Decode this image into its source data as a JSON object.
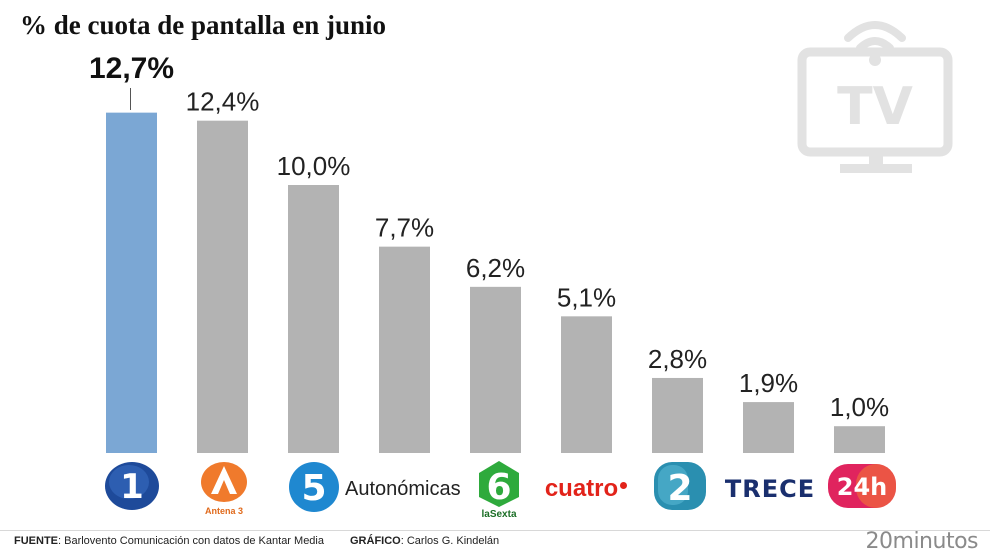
{
  "title": "% de cuota de pantalla en junio",
  "chart_data": {
    "type": "bar",
    "title": "% de cuota de pantalla en junio",
    "categories": [
      "La 1",
      "Antena 3",
      "Telecinco",
      "Autonómicas",
      "laSexta",
      "Cuatro",
      "La 2",
      "Trece",
      "24h"
    ],
    "values": [
      12.7,
      12.4,
      10.0,
      7.7,
      6.2,
      5.1,
      2.8,
      1.9,
      1.0
    ],
    "value_labels": [
      "12,7%",
      "12,4%",
      "10,0%",
      "7,7%",
      "6,2%",
      "5,1%",
      "2,8%",
      "1,9%",
      "1,0%"
    ],
    "ylim": [
      0,
      14
    ],
    "highlight_index": 0,
    "colors": {
      "highlight": "#7ba7d4",
      "default": "#b3b3b3"
    },
    "grid": false
  },
  "logos": {
    "la1": {
      "text": "1",
      "icon": "la1-logo"
    },
    "antena3": {
      "text": "Antena 3",
      "icon": "antena3-logo"
    },
    "telecinco": {
      "text": "5",
      "icon": "telecinco-logo"
    },
    "autonomicas": {
      "text": "Autonómicas"
    },
    "lasexta": {
      "text": "6",
      "caption": "laSexta",
      "icon": "lasexta-logo"
    },
    "cuatro": {
      "text": "cuatro",
      "icon": "cuatro-logo"
    },
    "la2": {
      "text": "2",
      "icon": "la2-logo"
    },
    "trece": {
      "text": "TRECE",
      "icon": "trece-logo"
    },
    "canal24h": {
      "text": "24h",
      "icon": "24h-logo"
    }
  },
  "footer": {
    "source_label": "FUENTE",
    "source_text": ": Barlovento Comunicación con datos de Kantar Media",
    "graphic_label": "GRÁFICO",
    "graphic_text": ": Carlos G. Kindelán",
    "brand": "20minutos"
  },
  "decor": {
    "tv_icon_text": "TV",
    "icon": "tv-icon"
  }
}
